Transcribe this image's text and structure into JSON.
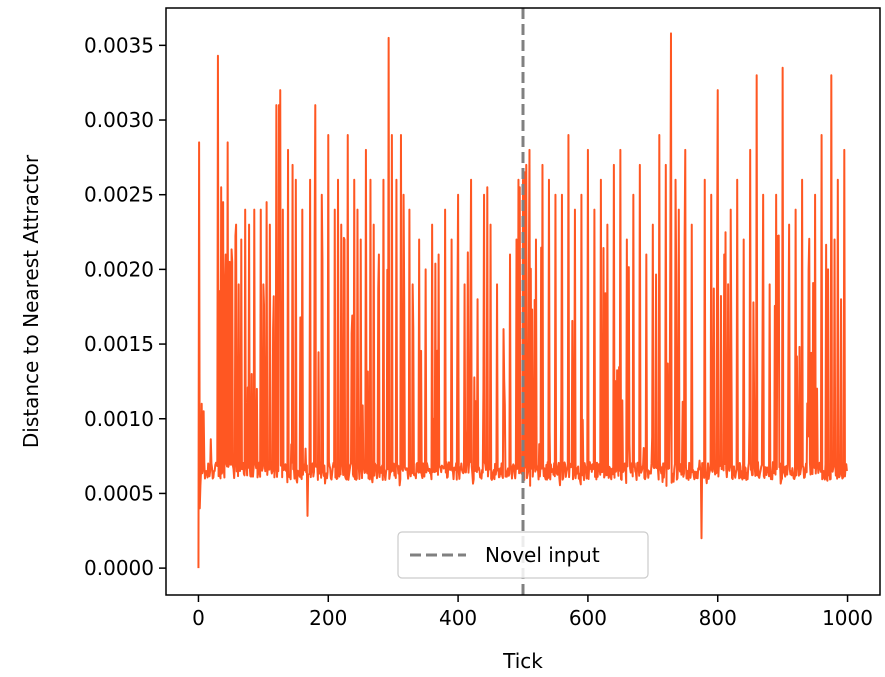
{
  "chart_data": {
    "type": "line",
    "title": "",
    "xlabel": "Tick",
    "ylabel": "Distance to Nearest Attractor",
    "xlim": [
      -50,
      1050
    ],
    "ylim": [
      -0.00018,
      0.00375
    ],
    "xticks": [
      0,
      200,
      400,
      600,
      800,
      1000
    ],
    "xtick_labels": [
      "0",
      "200",
      "400",
      "600",
      "800",
      "1000"
    ],
    "yticks": [
      0.0,
      0.0005,
      0.001,
      0.0015,
      0.002,
      0.0025,
      0.003,
      0.0035
    ],
    "ytick_labels": [
      "0.0000",
      "0.0005",
      "0.0010",
      "0.0015",
      "0.0020",
      "0.0025",
      "0.0030",
      "0.0035"
    ],
    "grid": false,
    "legend": {
      "position": "lower-center"
    },
    "series": [
      {
        "color": "#ff5722",
        "baseline": 0.00065,
        "x_range": [
          0,
          999
        ],
        "x": [
          0,
          1,
          2,
          3,
          5,
          8,
          10,
          12,
          15,
          18,
          20,
          22,
          25,
          28,
          30,
          35,
          38,
          42,
          45,
          48,
          52,
          58,
          62,
          66,
          72,
          78,
          82,
          86,
          90,
          96,
          100,
          105,
          110,
          115,
          120,
          124,
          126,
          128,
          130,
          138,
          145,
          150,
          160,
          168,
          172,
          180,
          190,
          200,
          210,
          215,
          220,
          225,
          230,
          240,
          245,
          250,
          258,
          265,
          270,
          278,
          285,
          293,
          298,
          305,
          312,
          316,
          325,
          330,
          340,
          350,
          360,
          370,
          380,
          390,
          400,
          410,
          420,
          430,
          440,
          445,
          450,
          460,
          470,
          480,
          490,
          493,
          495,
          500,
          503,
          505,
          510,
          520,
          530,
          540,
          550,
          560,
          570,
          580,
          590,
          600,
          610,
          620,
          630,
          640,
          650,
          660,
          670,
          680,
          690,
          700,
          710,
          720,
          728,
          735,
          740,
          750,
          760,
          775,
          780,
          790,
          800,
          810,
          820,
          830,
          840,
          850,
          860,
          870,
          880,
          890,
          900,
          910,
          920,
          930,
          940,
          950,
          960,
          970,
          975,
          980,
          985,
          990,
          995,
          999
        ],
        "peaks": [
          0.0,
          0.00285,
          0.0004,
          0.00055,
          0.0011,
          0.00105,
          0.0006,
          0.00065,
          0.0007,
          0.00065,
          0.0007,
          0.0006,
          0.00065,
          0.0007,
          0.00343,
          0.00255,
          0.00245,
          0.0021,
          0.00285,
          0.00205,
          0.00205,
          0.0023,
          0.0019,
          0.0022,
          0.0024,
          0.0023,
          0.0013,
          0.0024,
          0.0012,
          0.0024,
          0.0019,
          0.00245,
          0.0023,
          0.0016,
          0.0031,
          0.0031,
          0.0032,
          0.0015,
          0.0024,
          0.0028,
          0.0027,
          0.0026,
          0.0024,
          0.00035,
          0.0026,
          0.0031,
          0.0025,
          0.0029,
          0.0024,
          0.0026,
          0.0023,
          0.0022,
          0.0029,
          0.0026,
          0.0024,
          0.0022,
          0.0028,
          0.0026,
          0.0023,
          0.0021,
          0.0026,
          0.00355,
          0.0029,
          0.0026,
          0.0029,
          0.0025,
          0.0024,
          0.0019,
          0.0022,
          0.002,
          0.0023,
          0.0021,
          0.0024,
          0.0022,
          0.0025,
          0.0019,
          0.0026,
          0.0018,
          0.0025,
          0.00255,
          0.0023,
          0.0019,
          0.0016,
          0.0021,
          0.0022,
          0.0026,
          0.00255,
          0.0026,
          0.00265,
          0.0027,
          0.0028,
          0.0022,
          0.0027,
          0.0026,
          0.0025,
          0.0025,
          0.0029,
          0.0024,
          0.0025,
          0.0028,
          0.0024,
          0.0026,
          0.0023,
          0.0027,
          0.0028,
          0.0022,
          0.0025,
          0.0027,
          0.0021,
          0.0023,
          0.0029,
          0.0027,
          0.00358,
          0.0026,
          0.0024,
          0.0028,
          0.0023,
          0.0002,
          0.0026,
          0.0025,
          0.0032,
          0.0021,
          0.0024,
          0.0026,
          0.0022,
          0.0028,
          0.0033,
          0.0025,
          0.0019,
          0.0025,
          0.00335,
          0.0023,
          0.0024,
          0.0026,
          0.002,
          0.0025,
          0.0029,
          0.002,
          0.0033,
          0.0022,
          0.0026,
          0.0018,
          0.0028,
          0.00065
        ]
      },
      {
        "name": "Novel input",
        "style": "dashed",
        "color": "#808080",
        "x": [
          500,
          500
        ],
        "y": [
          -0.00018,
          0.00375
        ]
      }
    ]
  }
}
